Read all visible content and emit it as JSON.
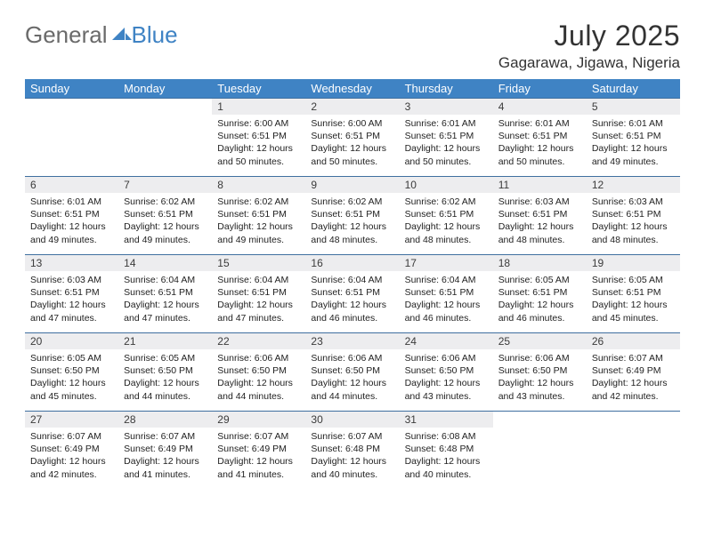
{
  "brand": {
    "part1": "General",
    "part2": "Blue"
  },
  "title": "July 2025",
  "location": "Gagarawa, Jigawa, Nigeria",
  "colors": {
    "header_bg": "#3f83c4",
    "header_text": "#ffffff",
    "daynum_bg": "#ededef",
    "rule": "#3f6fa0",
    "body_text": "#222222",
    "title_text": "#333333",
    "logo_gray": "#6a6a6a",
    "logo_blue": "#3f83c4"
  },
  "weekdays": [
    "Sunday",
    "Monday",
    "Tuesday",
    "Wednesday",
    "Thursday",
    "Friday",
    "Saturday"
  ],
  "weeks": [
    [
      null,
      null,
      {
        "n": "1",
        "sunrise": "6:00 AM",
        "sunset": "6:51 PM",
        "daylight": "12 hours and 50 minutes."
      },
      {
        "n": "2",
        "sunrise": "6:00 AM",
        "sunset": "6:51 PM",
        "daylight": "12 hours and 50 minutes."
      },
      {
        "n": "3",
        "sunrise": "6:01 AM",
        "sunset": "6:51 PM",
        "daylight": "12 hours and 50 minutes."
      },
      {
        "n": "4",
        "sunrise": "6:01 AM",
        "sunset": "6:51 PM",
        "daylight": "12 hours and 50 minutes."
      },
      {
        "n": "5",
        "sunrise": "6:01 AM",
        "sunset": "6:51 PM",
        "daylight": "12 hours and 49 minutes."
      }
    ],
    [
      {
        "n": "6",
        "sunrise": "6:01 AM",
        "sunset": "6:51 PM",
        "daylight": "12 hours and 49 minutes."
      },
      {
        "n": "7",
        "sunrise": "6:02 AM",
        "sunset": "6:51 PM",
        "daylight": "12 hours and 49 minutes."
      },
      {
        "n": "8",
        "sunrise": "6:02 AM",
        "sunset": "6:51 PM",
        "daylight": "12 hours and 49 minutes."
      },
      {
        "n": "9",
        "sunrise": "6:02 AM",
        "sunset": "6:51 PM",
        "daylight": "12 hours and 48 minutes."
      },
      {
        "n": "10",
        "sunrise": "6:02 AM",
        "sunset": "6:51 PM",
        "daylight": "12 hours and 48 minutes."
      },
      {
        "n": "11",
        "sunrise": "6:03 AM",
        "sunset": "6:51 PM",
        "daylight": "12 hours and 48 minutes."
      },
      {
        "n": "12",
        "sunrise": "6:03 AM",
        "sunset": "6:51 PM",
        "daylight": "12 hours and 48 minutes."
      }
    ],
    [
      {
        "n": "13",
        "sunrise": "6:03 AM",
        "sunset": "6:51 PM",
        "daylight": "12 hours and 47 minutes."
      },
      {
        "n": "14",
        "sunrise": "6:04 AM",
        "sunset": "6:51 PM",
        "daylight": "12 hours and 47 minutes."
      },
      {
        "n": "15",
        "sunrise": "6:04 AM",
        "sunset": "6:51 PM",
        "daylight": "12 hours and 47 minutes."
      },
      {
        "n": "16",
        "sunrise": "6:04 AM",
        "sunset": "6:51 PM",
        "daylight": "12 hours and 46 minutes."
      },
      {
        "n": "17",
        "sunrise": "6:04 AM",
        "sunset": "6:51 PM",
        "daylight": "12 hours and 46 minutes."
      },
      {
        "n": "18",
        "sunrise": "6:05 AM",
        "sunset": "6:51 PM",
        "daylight": "12 hours and 46 minutes."
      },
      {
        "n": "19",
        "sunrise": "6:05 AM",
        "sunset": "6:51 PM",
        "daylight": "12 hours and 45 minutes."
      }
    ],
    [
      {
        "n": "20",
        "sunrise": "6:05 AM",
        "sunset": "6:50 PM",
        "daylight": "12 hours and 45 minutes."
      },
      {
        "n": "21",
        "sunrise": "6:05 AM",
        "sunset": "6:50 PM",
        "daylight": "12 hours and 44 minutes."
      },
      {
        "n": "22",
        "sunrise": "6:06 AM",
        "sunset": "6:50 PM",
        "daylight": "12 hours and 44 minutes."
      },
      {
        "n": "23",
        "sunrise": "6:06 AM",
        "sunset": "6:50 PM",
        "daylight": "12 hours and 44 minutes."
      },
      {
        "n": "24",
        "sunrise": "6:06 AM",
        "sunset": "6:50 PM",
        "daylight": "12 hours and 43 minutes."
      },
      {
        "n": "25",
        "sunrise": "6:06 AM",
        "sunset": "6:50 PM",
        "daylight": "12 hours and 43 minutes."
      },
      {
        "n": "26",
        "sunrise": "6:07 AM",
        "sunset": "6:49 PM",
        "daylight": "12 hours and 42 minutes."
      }
    ],
    [
      {
        "n": "27",
        "sunrise": "6:07 AM",
        "sunset": "6:49 PM",
        "daylight": "12 hours and 42 minutes."
      },
      {
        "n": "28",
        "sunrise": "6:07 AM",
        "sunset": "6:49 PM",
        "daylight": "12 hours and 41 minutes."
      },
      {
        "n": "29",
        "sunrise": "6:07 AM",
        "sunset": "6:49 PM",
        "daylight": "12 hours and 41 minutes."
      },
      {
        "n": "30",
        "sunrise": "6:07 AM",
        "sunset": "6:48 PM",
        "daylight": "12 hours and 40 minutes."
      },
      {
        "n": "31",
        "sunrise": "6:08 AM",
        "sunset": "6:48 PM",
        "daylight": "12 hours and 40 minutes."
      },
      null,
      null
    ]
  ],
  "labels": {
    "sunrise": "Sunrise:",
    "sunset": "Sunset:",
    "daylight": "Daylight:"
  }
}
